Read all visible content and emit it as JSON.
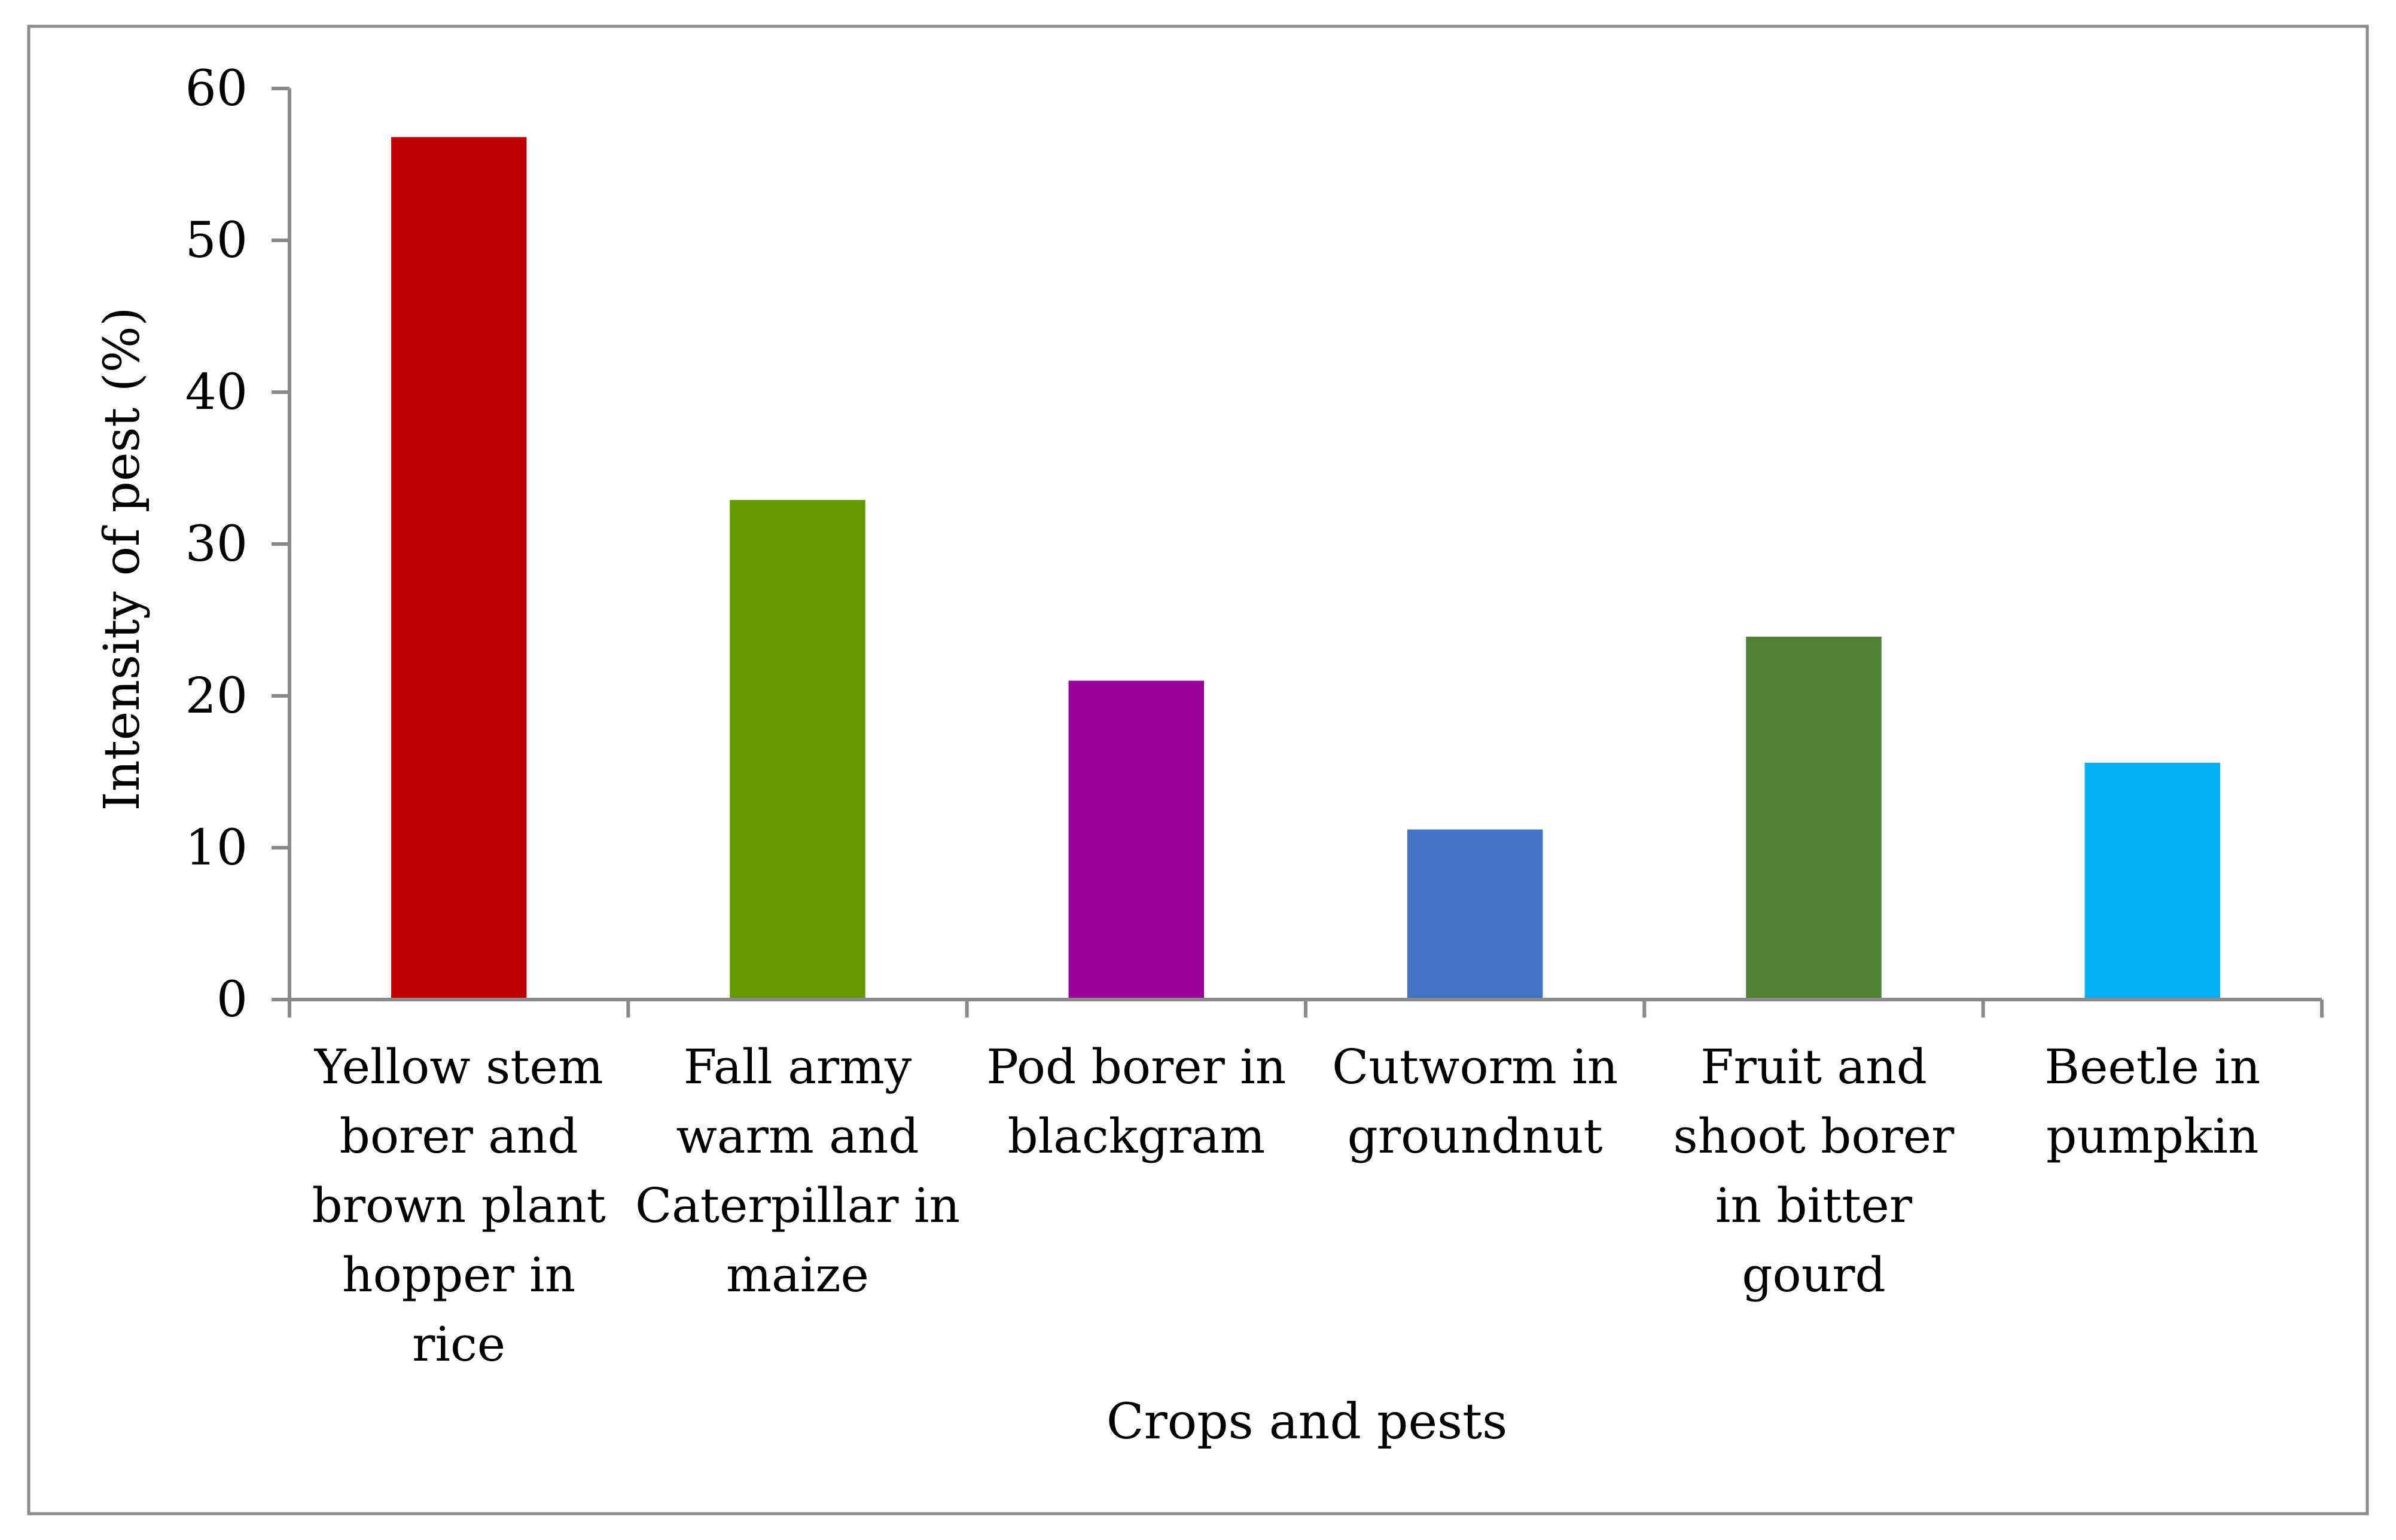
{
  "chart_data": {
    "type": "bar",
    "title": "",
    "xlabel": "Crops and pests",
    "ylabel": "Intensity of pest (%)",
    "ylim": [
      0,
      60
    ],
    "yticks": [
      0,
      10,
      20,
      30,
      40,
      50,
      60
    ],
    "categories": [
      "Yellow stem borer and brown plant hopper in rice",
      "Fall army warm and Caterpillar in maize",
      "Pod borer in blackgram",
      "Cutworm in groundnut",
      "Fruit and shoot borer in bitter gourd",
      "Beetle in pumpkin"
    ],
    "category_lines": [
      [
        "Yellow stem",
        "borer and",
        "brown plant",
        "hopper in",
        "rice"
      ],
      [
        "Fall army",
        "warm and",
        "Caterpillar in",
        "maize"
      ],
      [
        "Pod borer in",
        "blackgram"
      ],
      [
        "Cutworm in",
        "groundnut"
      ],
      [
        "Fruit and",
        "shoot borer",
        "in bitter",
        "gourd"
      ],
      [
        "Beetle in",
        "pumpkin"
      ]
    ],
    "values": [
      56.8,
      32.9,
      21.0,
      11.2,
      23.9,
      15.6
    ],
    "colors": [
      "#c00000",
      "#669900",
      "#990099",
      "#4472c4",
      "#538135",
      "#00b0f0"
    ],
    "grid": false,
    "legend": "none"
  }
}
